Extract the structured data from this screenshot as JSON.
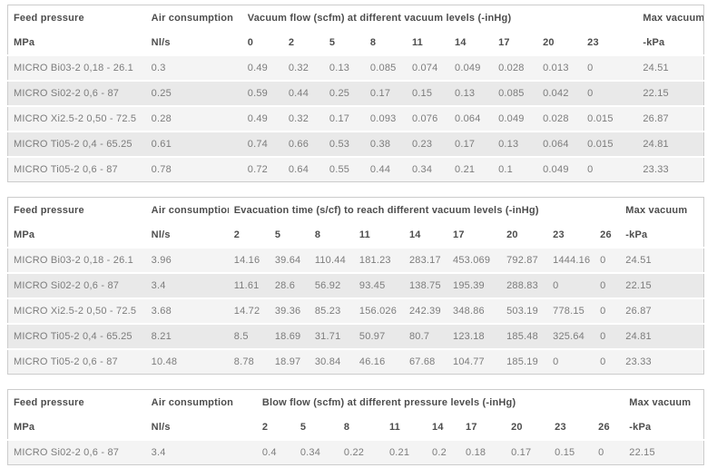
{
  "colors": {
    "page_bg": "#ffffff",
    "table_border": "#cccccc",
    "row_light": "#f4f4f4",
    "row_dark": "#e9e9e9",
    "header_text": "#4d4d4d",
    "cell_text": "#7c7c7c"
  },
  "tables": [
    {
      "name": "vacuum-flow",
      "header": {
        "feed_pressure": "Feed pressure",
        "air_consumption": "Air consumption",
        "group_title": "Vacuum flow (scfm) at different vacuum levels (-inHg)",
        "max_vacuum": "Max vacuum"
      },
      "subheader": {
        "feed_unit": "MPa",
        "air_unit": "Nl/s",
        "levels": [
          "0",
          "2",
          "5",
          "8",
          "11",
          "14",
          "17",
          "20",
          "23"
        ],
        "max_unit": "-kPa"
      },
      "rows": [
        {
          "model": "MICRO Bi03-2 0,18 - 26.1",
          "air": "0.3",
          "values": [
            "0.49",
            "0.32",
            "0.13",
            "0.085",
            "0.074",
            "0.049",
            "0.028",
            "0.013",
            "0"
          ],
          "max": "24.51"
        },
        {
          "model": "MICRO Si02-2 0,6 - 87",
          "air": "0.25",
          "values": [
            "0.59",
            "0.44",
            "0.25",
            "0.17",
            "0.15",
            "0.13",
            "0.085",
            "0.042",
            "0"
          ],
          "max": "22.15"
        },
        {
          "model": "MICRO Xi2.5-2 0,50 - 72.5",
          "air": "0.28",
          "values": [
            "0.49",
            "0.32",
            "0.17",
            "0.093",
            "0.076",
            "0.064",
            "0.049",
            "0.028",
            "0.015"
          ],
          "max": "26.87"
        },
        {
          "model": "MICRO Ti05-2 0,4 - 65.25",
          "air": "0.61",
          "values": [
            "0.74",
            "0.66",
            "0.53",
            "0.38",
            "0.23",
            "0.17",
            "0.13",
            "0.064",
            "0.015"
          ],
          "max": "24.81"
        },
        {
          "model": "MICRO Ti05-2 0,6 - 87",
          "air": "0.78",
          "values": [
            "0.72",
            "0.64",
            "0.55",
            "0.44",
            "0.34",
            "0.21",
            "0.1",
            "0.049",
            "0"
          ],
          "max": "23.33"
        }
      ]
    },
    {
      "name": "evacuation-time",
      "header": {
        "feed_pressure": "Feed pressure",
        "air_consumption": "Air consumption",
        "group_title": "Evacuation time (s/cf) to reach different vacuum levels (-inHg)",
        "max_vacuum": "Max vacuum"
      },
      "subheader": {
        "feed_unit": "MPa",
        "air_unit": "Nl/s",
        "levels": [
          "2",
          "5",
          "8",
          "11",
          "14",
          "17",
          "20",
          "23",
          "26"
        ],
        "max_unit": "-kPa"
      },
      "rows": [
        {
          "model": "MICRO Bi03-2 0,18 - 26.1",
          "air": "3.96",
          "values": [
            "14.16",
            "39.64",
            "110.44",
            "181.23",
            "283.17",
            "453.069",
            "792.87",
            "1444.16",
            "0"
          ],
          "max": "24.51"
        },
        {
          "model": "MICRO Si02-2 0,6 - 87",
          "air": "3.4",
          "values": [
            "11.61",
            "28.6",
            "56.92",
            "93.45",
            "138.75",
            "195.39",
            "288.83",
            "0",
            "0"
          ],
          "max": "22.15"
        },
        {
          "model": "MICRO Xi2.5-2 0,50 - 72.5",
          "air": "3.68",
          "values": [
            "14.72",
            "39.36",
            "85.23",
            "156.026",
            "242.39",
            "348.86",
            "503.19",
            "778.15",
            "0"
          ],
          "max": "26.87"
        },
        {
          "model": "MICRO Ti05-2 0,4 - 65.25",
          "air": "8.21",
          "values": [
            "8.5",
            "18.69",
            "31.71",
            "50.97",
            "80.7",
            "123.18",
            "185.48",
            "325.64",
            "0"
          ],
          "max": "24.81"
        },
        {
          "model": "MICRO Ti05-2 0,6 - 87",
          "air": "10.48",
          "values": [
            "8.78",
            "18.97",
            "30.84",
            "46.16",
            "67.68",
            "104.77",
            "185.19",
            "0",
            "0"
          ],
          "max": "23.33"
        }
      ]
    },
    {
      "name": "blow-flow",
      "header": {
        "feed_pressure": "Feed pressure",
        "air_consumption": "Air consumption",
        "group_title": "Blow flow (scfm) at different pressure levels (-inHg)",
        "max_vacuum": "Max vacuum"
      },
      "subheader": {
        "feed_unit": "MPa",
        "air_unit": "Nl/s",
        "levels": [
          "2",
          "5",
          "8",
          "11",
          "14",
          "17",
          "20",
          "23",
          "26"
        ],
        "max_unit": "-kPa"
      },
      "rows": [
        {
          "model": "MICRO Si02-2 0,6 - 87",
          "air": "3.4",
          "values": [
            "0.4",
            "0.34",
            "0.22",
            "0.21",
            "0.2",
            "0.18",
            "0.17",
            "0.15",
            "0"
          ],
          "max": "22.15"
        }
      ]
    }
  ]
}
